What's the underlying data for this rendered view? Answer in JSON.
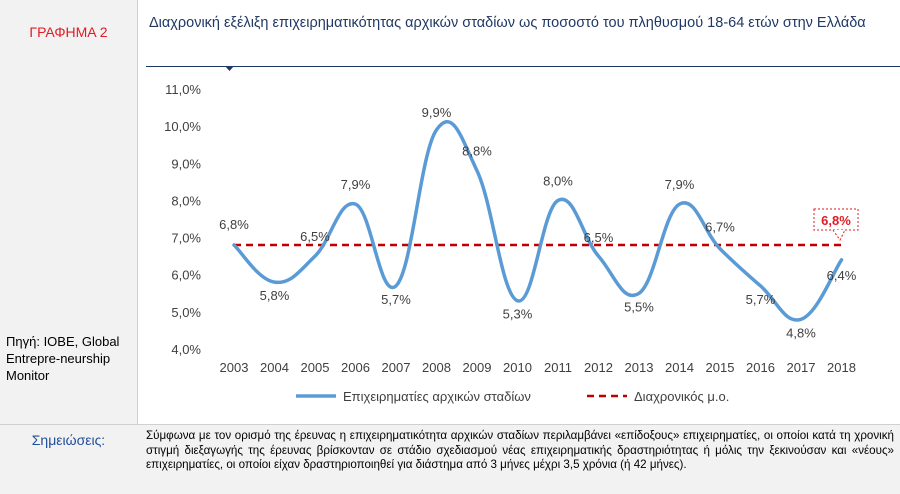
{
  "figure_label": "ΓΡΑΦΗΜΑ 2",
  "source_text": "Πηγή: ΙΟΒΕ, Global Entrepre-neurship Monitor",
  "notes_label": "Σημειώσεις:",
  "notes_text": "Σύμφωνα με τον ορισμό της έρευνας η επιχειρηματικότητα αρχικών σταδίων περιλαμβάνει «επίδοξους» επιχειρηματίες, οι οποίοι κατά τη χρονική στιγμή διεξαγωγής της έρευνας βρίσκονταν σε στάδιο σχεδιασμού νέας επιχειρηματικής δραστηριότητας ή μόλις την ξεκινούσαν και «νέους» επιχειρηματίες, οι οποίοι είχαν δραστηριοποιηθεί για διάστημα από 3 μήνες μέχρι 3,5 χρόνια (ή 42 μήνες).",
  "colors": {
    "title": "#1f3864",
    "series": "#5b9bd5",
    "average": "#c00000",
    "label_red": "#e31b23"
  },
  "chart_data": {
    "type": "line",
    "title": "Διαχρονική εξέλιξη επιχειρηματικότητας αρχικών σταδίων ως ποσοστό του πληθυσμού 18-64 ετών στην Ελλάδα",
    "x": [
      "2003",
      "2004",
      "2005",
      "2006",
      "2007",
      "2008",
      "2009",
      "2010",
      "2011",
      "2012",
      "2013",
      "2014",
      "2015",
      "2016",
      "2017",
      "2018"
    ],
    "series": [
      {
        "name": "Επιχειρηματίες αρχικών σταδίων",
        "values": [
          6.8,
          5.8,
          6.5,
          7.9,
          5.7,
          9.9,
          8.8,
          5.3,
          8.0,
          6.5,
          5.5,
          7.9,
          6.7,
          5.7,
          4.8,
          6.4
        ],
        "labels": [
          "6,8%",
          "5,8%",
          "6,5%",
          "7,9%",
          "5,7%",
          "9,9%",
          "8,8%",
          "5,3%",
          "8,0%",
          "6,5%",
          "5,5%",
          "7,9%",
          "6,7%",
          "5,7%",
          "4,8%",
          "6,4%"
        ]
      },
      {
        "name": "Διαχρονικός μ.ο.",
        "value": 6.8,
        "label": "6,8%"
      }
    ],
    "ylim": [
      4.0,
      11.0
    ],
    "yticks": [
      "4,0%",
      "5,0%",
      "6,0%",
      "7,0%",
      "8,0%",
      "9,0%",
      "10,0%",
      "11,0%"
    ],
    "xlabel": "",
    "ylabel": "",
    "grid": false,
    "legend": "bottom"
  }
}
